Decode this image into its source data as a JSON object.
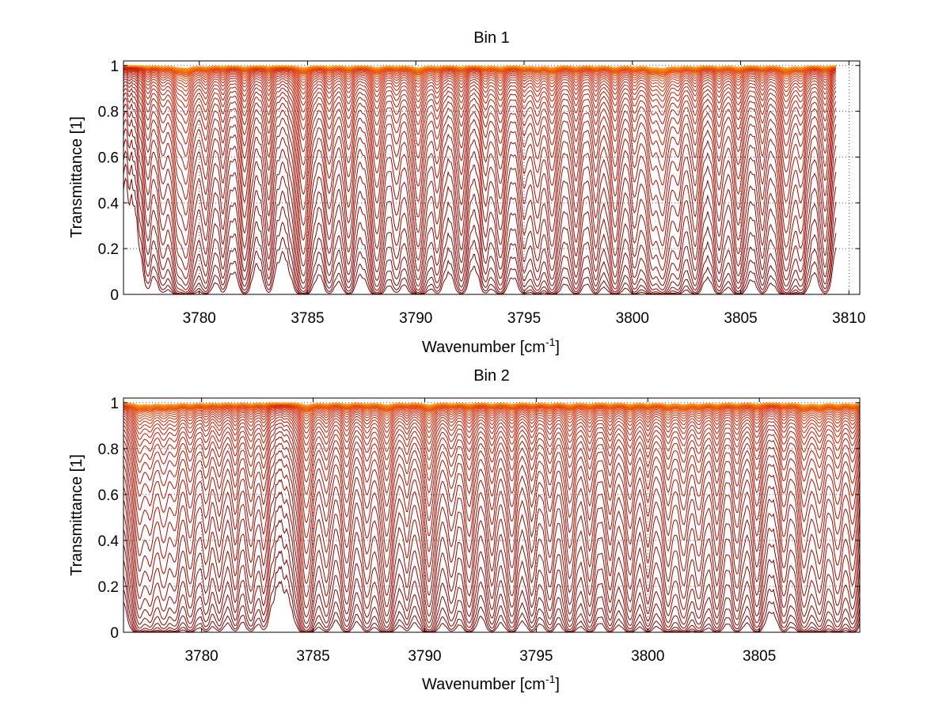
{
  "colors": {
    "background": "#ffffff",
    "axis": "#000000",
    "grid": "#555555",
    "curve_opaque": "#7a0000",
    "curve_mid": "#d01c00",
    "curve_clear": "#ff9a1a"
  },
  "chart_data": [
    {
      "type": "line",
      "title": "Bin 1",
      "xlabel": "Wavenumber [cm",
      "xlabel_sup": "-1",
      "xlabel_tail": "]",
      "ylabel": "Transmittance [1]",
      "xlim": [
        3776.5,
        3810.5
      ],
      "ylim": [
        0,
        1.02
      ],
      "xticks": [
        3780,
        3785,
        3790,
        3795,
        3800,
        3805,
        3810
      ],
      "xtick_labels": [
        "3780",
        "3785",
        "3790",
        "3795",
        "3800",
        "3805",
        "3810"
      ],
      "yticks": [
        0,
        0.2,
        0.4,
        0.6,
        0.8,
        1
      ],
      "ytick_labels": [
        "0",
        "0.2",
        "0.4",
        "0.6",
        "0.8",
        "1"
      ],
      "grid": true,
      "x_end": 3809.4,
      "series_count": 40,
      "series_note": "family of transmittance spectra, color runs dark red (opaque) to orange (transparent)",
      "absorption_lines": [
        {
          "x": 3777.6,
          "depth": 0.25
        },
        {
          "x": 3778.3,
          "depth": 0.3
        },
        {
          "x": 3779.0,
          "depth": 0.5
        },
        {
          "x": 3779.4,
          "depth": 0.95
        },
        {
          "x": 3780.3,
          "depth": 0.45
        },
        {
          "x": 3781.1,
          "depth": 0.3
        },
        {
          "x": 3782.1,
          "depth": 0.5
        },
        {
          "x": 3783.2,
          "depth": 0.35
        },
        {
          "x": 3784.8,
          "depth": 0.85
        },
        {
          "x": 3786.0,
          "depth": 0.4
        },
        {
          "x": 3786.9,
          "depth": 0.5
        },
        {
          "x": 3788.2,
          "depth": 0.75
        },
        {
          "x": 3789.1,
          "depth": 0.3
        },
        {
          "x": 3790.1,
          "depth": 0.9
        },
        {
          "x": 3791.0,
          "depth": 0.35
        },
        {
          "x": 3792.1,
          "depth": 0.5
        },
        {
          "x": 3793.2,
          "depth": 0.35
        },
        {
          "x": 3793.9,
          "depth": 0.55
        },
        {
          "x": 3795.0,
          "depth": 0.4
        },
        {
          "x": 3795.6,
          "depth": 0.5
        },
        {
          "x": 3796.3,
          "depth": 0.7
        },
        {
          "x": 3797.4,
          "depth": 0.5
        },
        {
          "x": 3798.3,
          "depth": 0.4
        },
        {
          "x": 3799.2,
          "depth": 0.65
        },
        {
          "x": 3800.1,
          "depth": 0.45
        },
        {
          "x": 3800.9,
          "depth": 0.6
        },
        {
          "x": 3801.4,
          "depth": 0.95
        },
        {
          "x": 3802.1,
          "depth": 0.4
        },
        {
          "x": 3802.9,
          "depth": 0.55
        },
        {
          "x": 3804.0,
          "depth": 0.45
        },
        {
          "x": 3804.9,
          "depth": 0.65
        },
        {
          "x": 3806.0,
          "depth": 0.4
        },
        {
          "x": 3807.1,
          "depth": 0.9
        },
        {
          "x": 3807.8,
          "depth": 0.5
        },
        {
          "x": 3808.9,
          "depth": 0.45
        }
      ]
    },
    {
      "type": "line",
      "title": "Bin 2",
      "xlabel": "Wavenumber [cm",
      "xlabel_sup": "-1",
      "xlabel_tail": "]",
      "ylabel": "Transmittance [1]",
      "xlim": [
        3776.5,
        3809.5
      ],
      "ylim": [
        0,
        1.02
      ],
      "xticks": [
        3780,
        3785,
        3790,
        3795,
        3800,
        3805
      ],
      "xtick_labels": [
        "3780",
        "3785",
        "3790",
        "3795",
        "3800",
        "3805"
      ],
      "yticks": [
        0,
        0.2,
        0.4,
        0.6,
        0.8,
        1
      ],
      "ytick_labels": [
        "0",
        "0.2",
        "0.4",
        "0.6",
        "0.8",
        "1"
      ],
      "grid": true,
      "x_end": 3809.5,
      "series_count": 40,
      "series_note": "family of transmittance spectra, color runs dark red (opaque) to orange (transparent)",
      "absorption_lines": [
        {
          "x": 3777.2,
          "depth": 0.8
        },
        {
          "x": 3777.7,
          "depth": 0.6
        },
        {
          "x": 3778.3,
          "depth": 0.6
        },
        {
          "x": 3778.8,
          "depth": 0.5
        },
        {
          "x": 3779.5,
          "depth": 0.5
        },
        {
          "x": 3780.2,
          "depth": 0.35
        },
        {
          "x": 3780.8,
          "depth": 0.35
        },
        {
          "x": 3781.5,
          "depth": 0.35
        },
        {
          "x": 3782.2,
          "depth": 0.4
        },
        {
          "x": 3782.8,
          "depth": 0.3
        },
        {
          "x": 3784.7,
          "depth": 0.9
        },
        {
          "x": 3785.6,
          "depth": 0.4
        },
        {
          "x": 3786.5,
          "depth": 0.5
        },
        {
          "x": 3787.4,
          "depth": 0.4
        },
        {
          "x": 3788.3,
          "depth": 0.85
        },
        {
          "x": 3789.2,
          "depth": 0.3
        },
        {
          "x": 3790.2,
          "depth": 0.85
        },
        {
          "x": 3791.2,
          "depth": 0.35
        },
        {
          "x": 3792.0,
          "depth": 0.55
        },
        {
          "x": 3793.0,
          "depth": 0.45
        },
        {
          "x": 3793.9,
          "depth": 0.55
        },
        {
          "x": 3794.8,
          "depth": 0.4
        },
        {
          "x": 3795.6,
          "depth": 0.45
        },
        {
          "x": 3796.5,
          "depth": 0.65
        },
        {
          "x": 3797.4,
          "depth": 0.5
        },
        {
          "x": 3798.3,
          "depth": 0.45
        },
        {
          "x": 3799.2,
          "depth": 0.6
        },
        {
          "x": 3800.0,
          "depth": 0.45
        },
        {
          "x": 3800.9,
          "depth": 0.6
        },
        {
          "x": 3801.6,
          "depth": 0.65
        },
        {
          "x": 3802.3,
          "depth": 0.5
        },
        {
          "x": 3803.1,
          "depth": 0.55
        },
        {
          "x": 3804.0,
          "depth": 0.45
        },
        {
          "x": 3804.9,
          "depth": 0.55
        },
        {
          "x": 3806.1,
          "depth": 0.4
        },
        {
          "x": 3807.0,
          "depth": 0.8
        },
        {
          "x": 3807.7,
          "depth": 0.7
        },
        {
          "x": 3808.5,
          "depth": 0.6
        },
        {
          "x": 3809.2,
          "depth": 0.55
        }
      ]
    }
  ]
}
